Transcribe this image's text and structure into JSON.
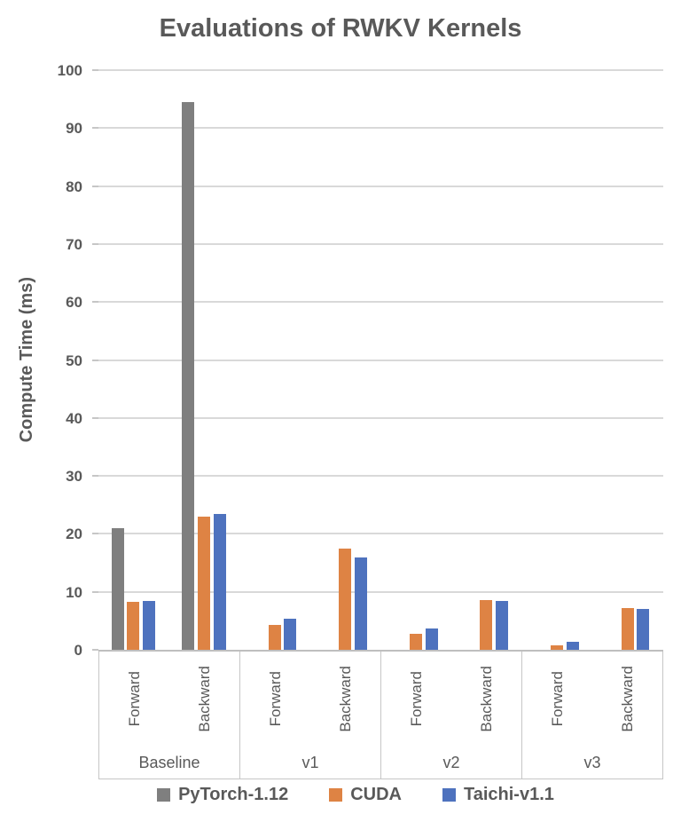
{
  "chart_data": {
    "type": "bar",
    "title": "Evaluations of RWKV Kernels",
    "xlabel": "",
    "ylabel": "Compute Time (ms)",
    "ylim": [
      0,
      100
    ],
    "ytick_step": 10,
    "grid": true,
    "legend_position": "bottom",
    "groups": [
      "Baseline",
      "v1",
      "v2",
      "v3"
    ],
    "subgroups": [
      "Forward",
      "Backward"
    ],
    "series": [
      {
        "name": "PyTorch-1.12",
        "color": "#7F7F7F",
        "values": [
          [
            21,
            94.5
          ],
          [
            null,
            null
          ],
          [
            null,
            null
          ],
          [
            null,
            null
          ]
        ]
      },
      {
        "name": "CUDA",
        "color": "#DE8344",
        "values": [
          [
            8.3,
            23
          ],
          [
            4.3,
            17.4
          ],
          [
            2.8,
            8.6
          ],
          [
            0.8,
            7.2
          ]
        ]
      },
      {
        "name": "Taichi-v1.1",
        "color": "#4E72BE",
        "values": [
          [
            8.5,
            23.4
          ],
          [
            5.4,
            16
          ],
          [
            3.7,
            8.5
          ],
          [
            1.4,
            7.1
          ]
        ]
      }
    ],
    "colors": {
      "text": "#595959",
      "gridline": "#D9D9D9",
      "axis_line": "#BFBFBF"
    }
  }
}
